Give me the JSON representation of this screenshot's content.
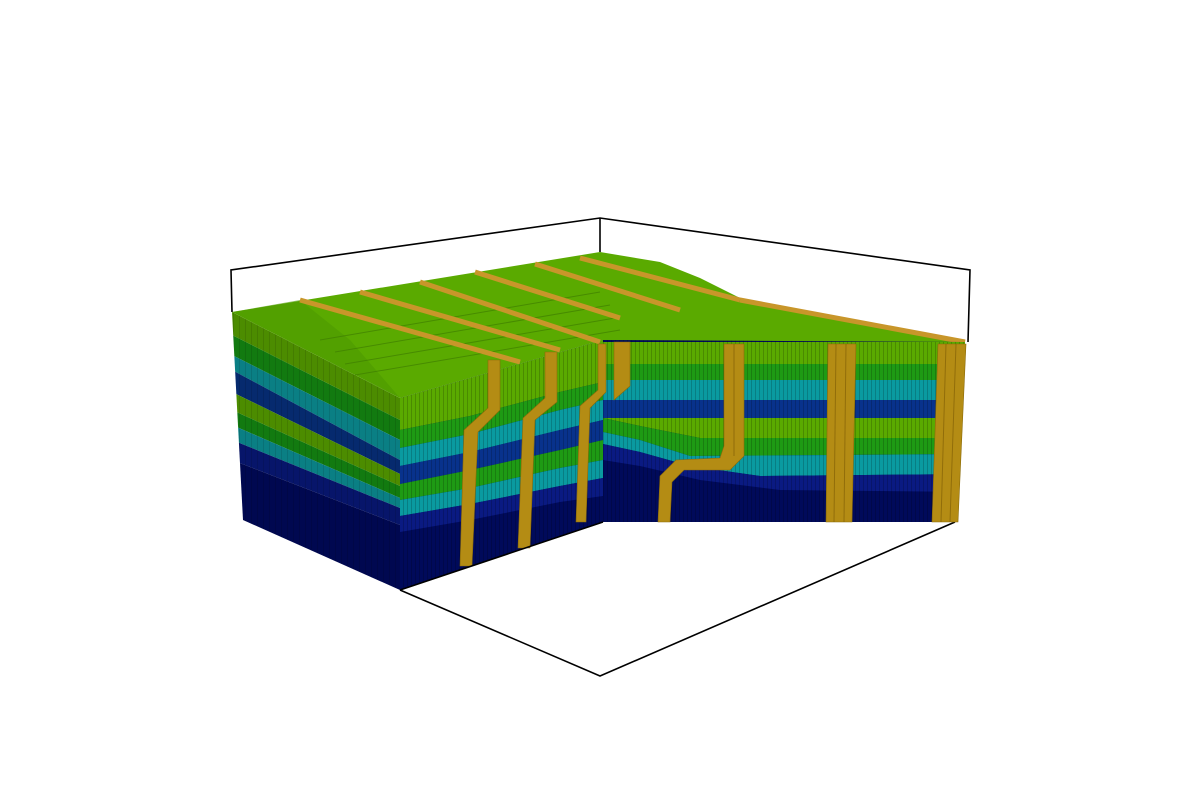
{
  "scene": {
    "type": "3d-voxel-geologic-block-model",
    "background": "#ffffff",
    "bounding_box_color": "#000000",
    "layer_colors_top_to_bottom": [
      "#5aaa00",
      "#1e9a14",
      "#0a9aa0",
      "#08328c",
      "#5aaa00",
      "#1e9a14",
      "#0a9aa0",
      "#0a1a82",
      "#000a5a"
    ],
    "fault_color": "#b48c14",
    "fault_count": 7
  }
}
